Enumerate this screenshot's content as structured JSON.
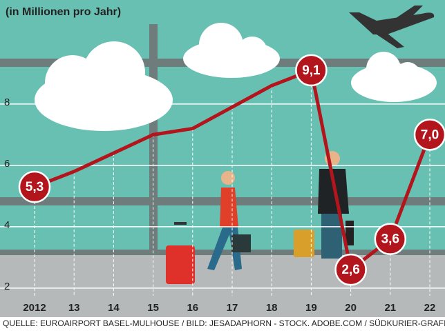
{
  "chart_data": {
    "type": "line",
    "subtitle": "(in Millionen pro Jahr)",
    "source": "QUELLE: EUROAIRPORT BASEL-MULHOUSE / BILD: JESADAPHORN - STOCK. ADOBE.COM / SÜDKURIER-GRAFIK: MÜLLER",
    "categories": [
      "2012",
      "13",
      "14",
      "15",
      "16",
      "17",
      "18",
      "19",
      "20",
      "21",
      "22"
    ],
    "values": [
      5.3,
      5.8,
      6.4,
      7.0,
      7.2,
      7.9,
      8.6,
      9.1,
      2.6,
      3.6,
      7.0
    ],
    "value_labels": [
      "5,3",
      null,
      null,
      null,
      null,
      null,
      null,
      "9,1",
      "2,6",
      "3,6",
      "7,0"
    ],
    "color": "#b3151c",
    "ylim": [
      1.75,
      11.3
    ],
    "yticks": [
      2,
      4,
      6,
      8
    ],
    "grid": true
  }
}
